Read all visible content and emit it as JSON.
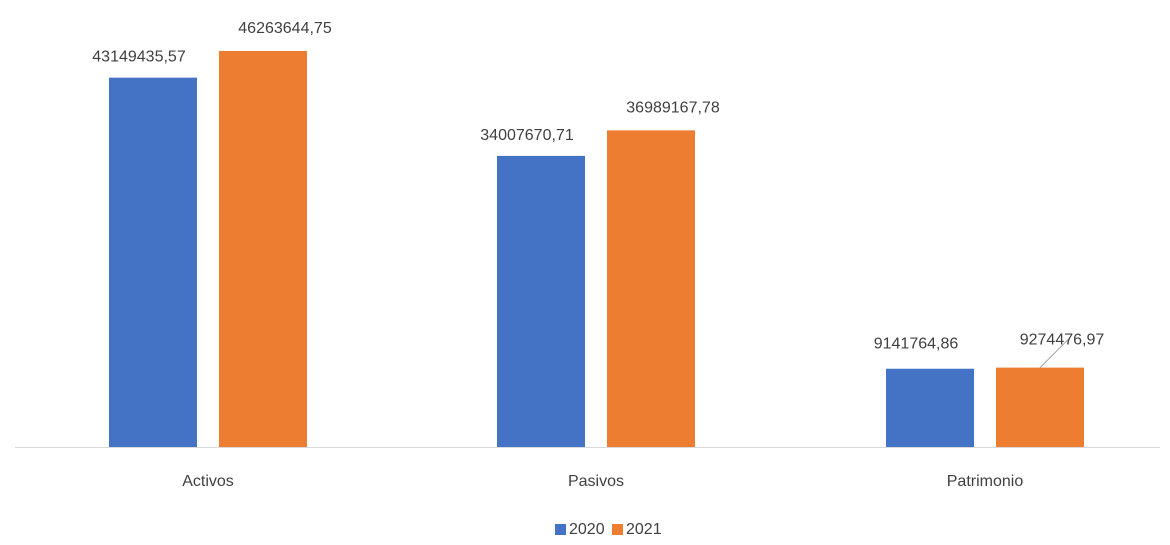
{
  "chart_data": {
    "type": "bar",
    "title": "",
    "xlabel": "",
    "ylabel": "",
    "categories": [
      "Activos",
      "Pasivos",
      "Patrimonio"
    ],
    "series": [
      {
        "name": "2020",
        "color": "#4472C4",
        "values": [
          43149435.57,
          34007670.71,
          9141764.86
        ],
        "labels": [
          "43149435,57",
          "34007670,71",
          "9141764,86"
        ]
      },
      {
        "name": "2021",
        "color": "#ED7D31",
        "values": [
          46263644.75,
          36989167.78,
          9274476.97
        ],
        "labels": [
          "46263644,75",
          "36989167,78",
          "9274476,97"
        ]
      }
    ],
    "ylim": [
      0,
      50000000
    ],
    "grid": false,
    "legend": "bottom"
  }
}
